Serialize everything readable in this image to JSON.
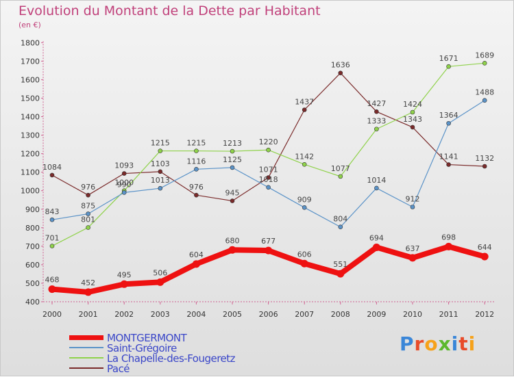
{
  "title": "Evolution du Montant de la Dette par Habitant",
  "subtitle": "(en €)",
  "logo": {
    "text": "Proxiti",
    "colors": [
      "#3a86d8",
      "#e84b2a",
      "#f6a21a",
      "#5cb82e",
      "#3a86d8",
      "#e84b2a",
      "#f6a21a"
    ]
  },
  "chart_data": {
    "type": "line",
    "x": [
      2000,
      2001,
      2002,
      2003,
      2004,
      2005,
      2006,
      2007,
      2008,
      2009,
      2010,
      2011,
      2012
    ],
    "ylim": [
      400,
      1800
    ],
    "yticks": [
      400,
      500,
      600,
      700,
      800,
      900,
      1000,
      1100,
      1200,
      1300,
      1400,
      1500,
      1600,
      1700,
      1800
    ],
    "grid": false,
    "legend_position": "bottom-left",
    "series": [
      {
        "name": "MONTGERMONT",
        "color": "#ee1111",
        "values": [
          468,
          452,
          495,
          506,
          604,
          680,
          677,
          606,
          551,
          694,
          637,
          698,
          644
        ]
      },
      {
        "name": "Saint-Grégoire",
        "color": "#5b93c8",
        "values": [
          843,
          875,
          990,
          1013,
          1116,
          1125,
          1018,
          909,
          804,
          1014,
          912,
          1364,
          1488
        ]
      },
      {
        "name": "La Chapelle-des-Fougeretz",
        "color": "#8fd24a",
        "values": [
          701,
          801,
          1000,
          1215,
          1215,
          1213,
          1220,
          1142,
          1077,
          1333,
          1424,
          1671,
          1689
        ]
      },
      {
        "name": "Pacé",
        "color": "#7a2a2a",
        "values": [
          1084,
          976,
          1093,
          1103,
          976,
          945,
          1071,
          1437,
          1636,
          1427,
          1343,
          1141,
          1132
        ]
      }
    ]
  }
}
